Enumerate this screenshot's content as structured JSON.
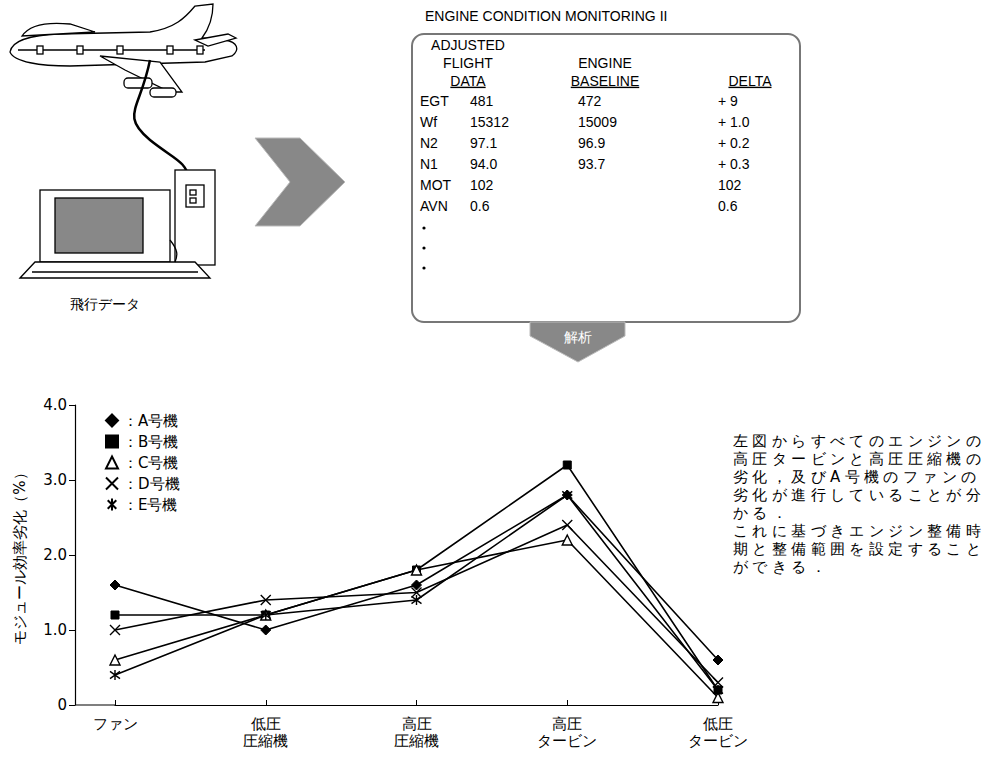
{
  "chart_data": {
    "type": "line",
    "y_label": "モジュール効率劣化（%）",
    "categories": [
      "ファン",
      "低圧圧縮機",
      "高圧圧縮機",
      "高圧タービン",
      "低圧タービン"
    ],
    "series": [
      {
        "name": "：A号機",
        "color": "#000000",
        "marker": "diamond",
        "values": [
          1.6,
          1.0,
          1.6,
          2.8,
          0.6
        ]
      },
      {
        "name": "：B号機",
        "color": "#000000",
        "marker": "square",
        "values": [
          1.2,
          1.2,
          1.8,
          3.2,
          0.2
        ]
      },
      {
        "name": "：C号機",
        "color": "#000000",
        "marker": "triangle_open",
        "values": [
          0.6,
          1.2,
          1.8,
          2.2,
          0.1
        ]
      },
      {
        "name": "：D号機",
        "color": "#000000",
        "marker": "x",
        "values": [
          1.0,
          1.4,
          1.5,
          2.4,
          0.3
        ]
      },
      {
        "name": "：E号機",
        "color": "#000000",
        "marker": "asterisk",
        "values": [
          0.4,
          1.2,
          1.4,
          2.8,
          0.2
        ]
      }
    ],
    "ylim": [
      0,
      4
    ],
    "yticks": [
      0,
      {
        "value": 1,
        "label": "1.0"
      },
      {
        "value": 2,
        "label": "2.0"
      },
      {
        "value": 3,
        "label": "3.0"
      },
      {
        "value": 4,
        "label": "4.0"
      }
    ],
    "grid": false,
    "legend": "upper left"
  },
  "flow": {
    "input_label": "飛行データ",
    "analysis_label": "解析"
  },
  "screen": {
    "title": "ENGINE CONDITION MONITORING II",
    "columns": [
      [
        "ADJUSTED",
        "FLIGHT",
        "DATA"
      ],
      [
        "ENGINE",
        "BASELINE"
      ],
      [
        "DELTA"
      ]
    ],
    "rows": [
      [
        "EGT",
        "481",
        "472",
        "+ 9"
      ],
      [
        "Wf",
        "15312",
        "15009",
        "+ 1.0"
      ],
      [
        "N2",
        "97.1",
        "96.9",
        "+ 0.2"
      ],
      [
        "N1",
        "94.0",
        "93.7",
        "+ 0.3"
      ],
      [
        "MOT",
        "102",
        null,
        "102"
      ],
      [
        "AVN",
        "0.6",
        null,
        "0.6"
      ]
    ]
  },
  "note": {
    "paragraphs": [
      "左図からすべてのエンジンの高圧タービンと高圧圧縮機の劣化，及びA号機のファンの劣化が進行していることが分かる．",
      "これに基づきエンジン整備時期と整備範囲を設定することができる．"
    ]
  }
}
